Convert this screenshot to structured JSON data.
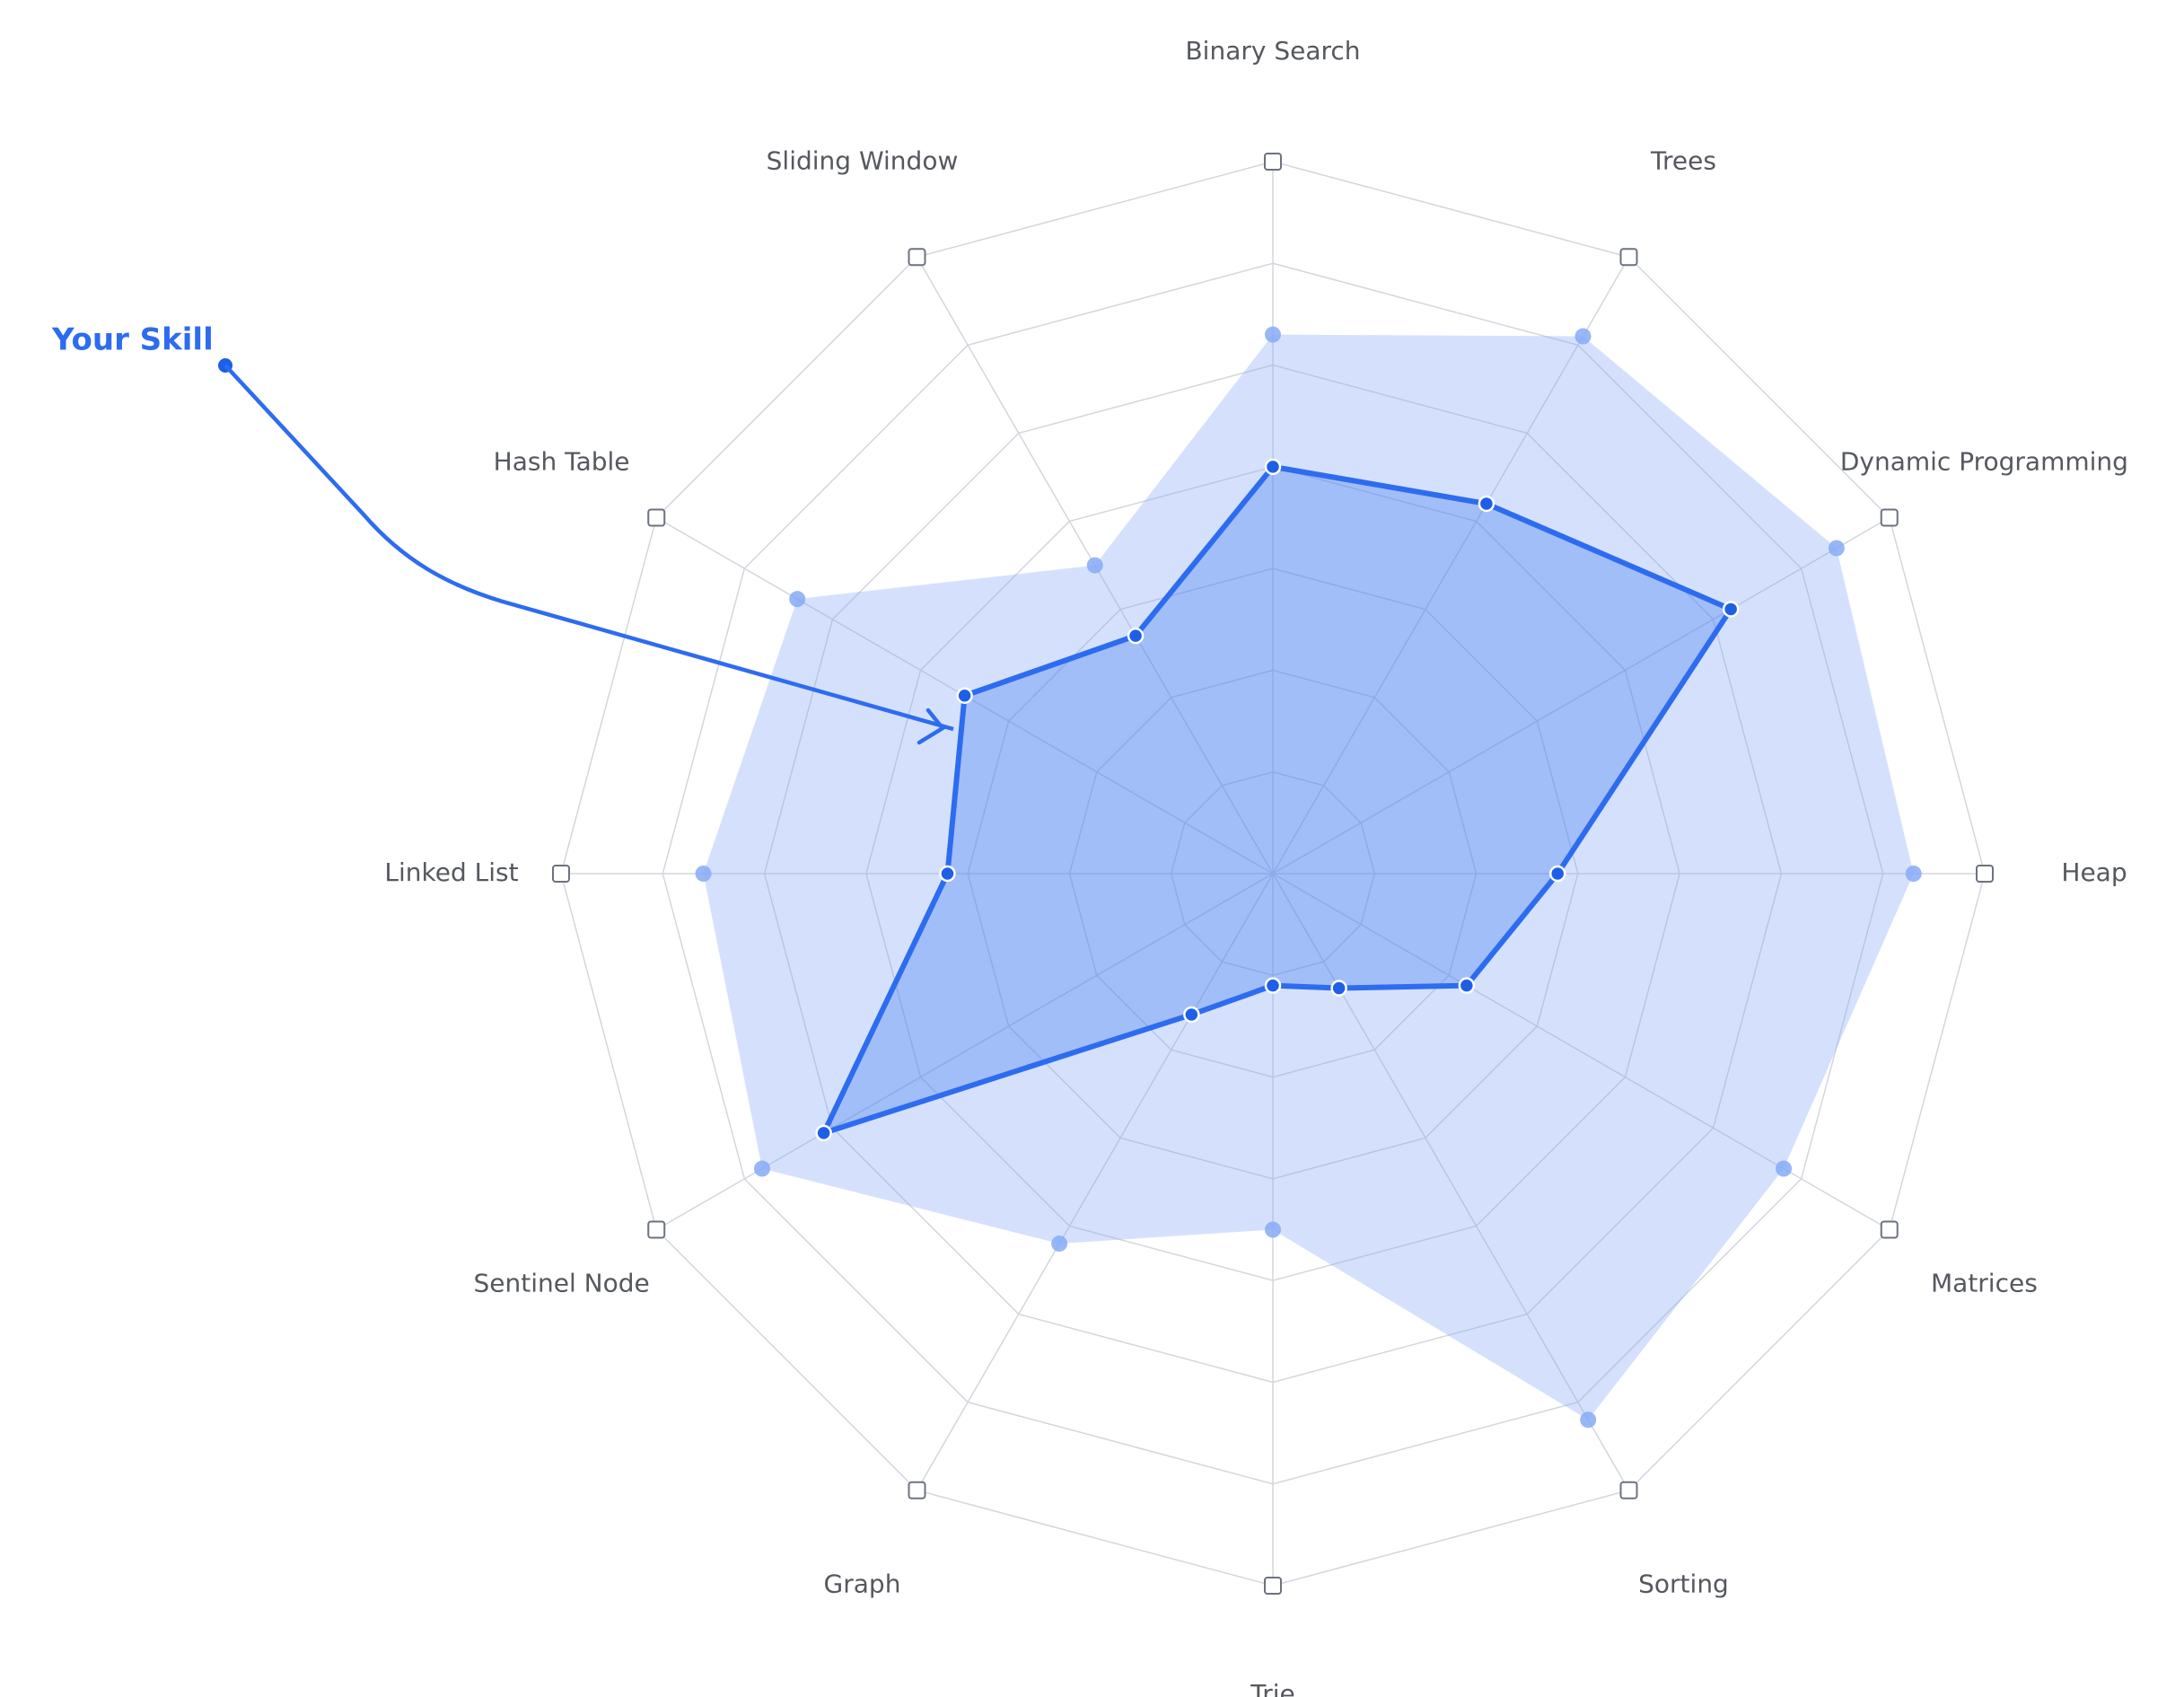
{
  "chart_data": {
    "type": "radar",
    "categories": [
      "Binary Search",
      "Trees",
      "Dynamic Programming",
      "Heap",
      "Matrices",
      "Sorting",
      "Trie",
      "Graph",
      "Sentinel Node",
      "Linked List",
      "Hash Table",
      "Sliding Window"
    ],
    "rlim": [
      0,
      7
    ],
    "rticks": [
      1,
      2,
      3,
      4,
      5,
      6,
      7
    ],
    "series": [
      {
        "name": "Your Skill",
        "color": "#2d6cf0",
        "values": [
          4.0,
          4.2,
          5.2,
          2.8,
          2.2,
          1.3,
          1.1,
          1.6,
          5.1,
          3.2,
          3.5,
          2.7
        ]
      },
      {
        "color": "#86aaf6",
        "values": [
          5.3,
          6.1,
          6.4,
          6.3,
          5.8,
          6.2,
          3.5,
          4.2,
          5.8,
          5.6,
          5.4,
          3.5
        ]
      }
    ]
  }
}
